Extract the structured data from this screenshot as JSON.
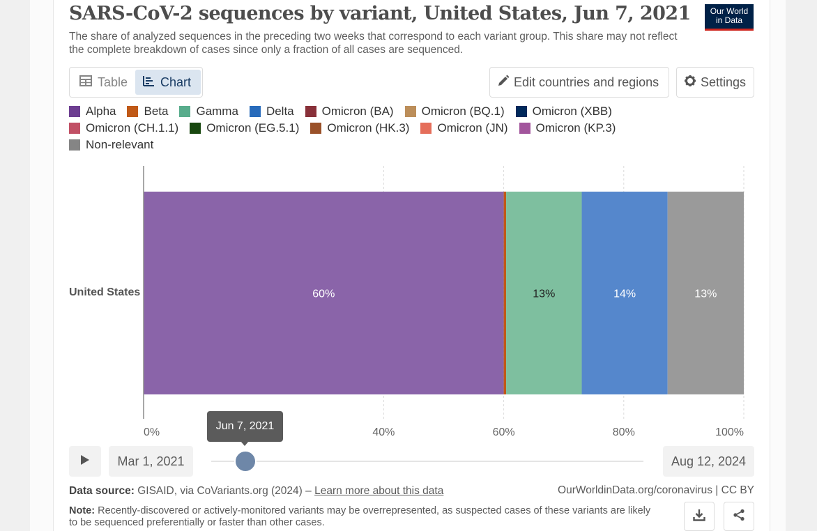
{
  "header": {
    "title": "SARS-CoV-2 sequences by variant, United States, Jun 7, 2021",
    "subtitle": "The share of analyzed sequences in the preceding two weeks that correspond to each variant group. This share may not reflect the complete breakdown of cases since only a fraction of all cases are sequenced.",
    "logo_line1": "Our World",
    "logo_line2": "in Data"
  },
  "tabs": [
    {
      "label": "Table",
      "icon": "table-icon",
      "active": false
    },
    {
      "label": "Chart",
      "icon": "chart-icon",
      "active": true
    }
  ],
  "toolbar": {
    "edit_label": "Edit countries and regions",
    "settings_label": "Settings"
  },
  "colors": {
    "accent": "#183b63",
    "logo_bg": "#002147",
    "logo_underline": "#ce261e"
  },
  "chart_data": {
    "type": "bar",
    "orientation": "horizontal-stacked",
    "categories": [
      "United States"
    ],
    "series": [
      {
        "name": "Alpha",
        "color": "#8a64a9",
        "legend_color": "#6d3e91",
        "values": [
          60
        ],
        "label": "60%"
      },
      {
        "name": "Beta",
        "color": "#c05917",
        "legend_color": "#c05917",
        "values": [
          0.4
        ],
        "label": ""
      },
      {
        "name": "Gamma",
        "color": "#7ebf9f",
        "legend_color": "#58ac8c",
        "values": [
          12.6
        ],
        "label": "13%"
      },
      {
        "name": "Delta",
        "color": "#5587cc",
        "legend_color": "#286bbb",
        "values": [
          14.3
        ],
        "label": "14%"
      },
      {
        "name": "Omicron (BA)",
        "color": "#883039",
        "legend_color": "#883039",
        "values": [
          0
        ],
        "label": ""
      },
      {
        "name": "Omicron (BQ.1)",
        "color": "#bc8e5a",
        "legend_color": "#bc8e5a",
        "values": [
          0
        ],
        "label": ""
      },
      {
        "name": "Omicron (XBB)",
        "color": "#00295b",
        "legend_color": "#00295b",
        "values": [
          0
        ],
        "label": ""
      },
      {
        "name": "Omicron (CH.1.1)",
        "color": "#c15065",
        "legend_color": "#c15065",
        "values": [
          0
        ],
        "label": ""
      },
      {
        "name": "Omicron (EG.5.1)",
        "color": "#18470f",
        "legend_color": "#18470f",
        "values": [
          0
        ],
        "label": ""
      },
      {
        "name": "Omicron (HK.3)",
        "color": "#9a5129",
        "legend_color": "#9a5129",
        "values": [
          0
        ],
        "label": ""
      },
      {
        "name": "Omicron (JN)",
        "color": "#e56e5a",
        "legend_color": "#e56e5a",
        "values": [
          0
        ],
        "label": ""
      },
      {
        "name": "Omicron (KP.3)",
        "color": "#a2559c",
        "legend_color": "#a2559c",
        "values": [
          0
        ],
        "label": ""
      },
      {
        "name": "Non-relevant",
        "color": "#9a9a9a",
        "legend_color": "#858585",
        "values": [
          12.7
        ],
        "label": "13%"
      }
    ],
    "x_ticks": [
      "0%",
      "40%",
      "60%",
      "80%",
      "100%"
    ],
    "x_tick_values": [
      0,
      40,
      60,
      80,
      100
    ],
    "xlim": [
      0,
      100
    ],
    "grid": true,
    "legend_position": "top"
  },
  "timeline": {
    "start_label": "Mar 1, 2021",
    "end_label": "Aug 12, 2024",
    "current_label": "Jun 7, 2021"
  },
  "footer": {
    "source_label": "Data source:",
    "source_text": " GISAID, via CoVariants.org (2024) – ",
    "source_link": "Learn more about this data",
    "credit": "OurWorldinData.org/coronavirus | CC BY",
    "note_label": "Note:",
    "note_text": " Recently-discovered or actively-monitored variants may be overrepresented, as suspected cases of these variants are likely to be sequenced preferentially or faster than other cases."
  }
}
